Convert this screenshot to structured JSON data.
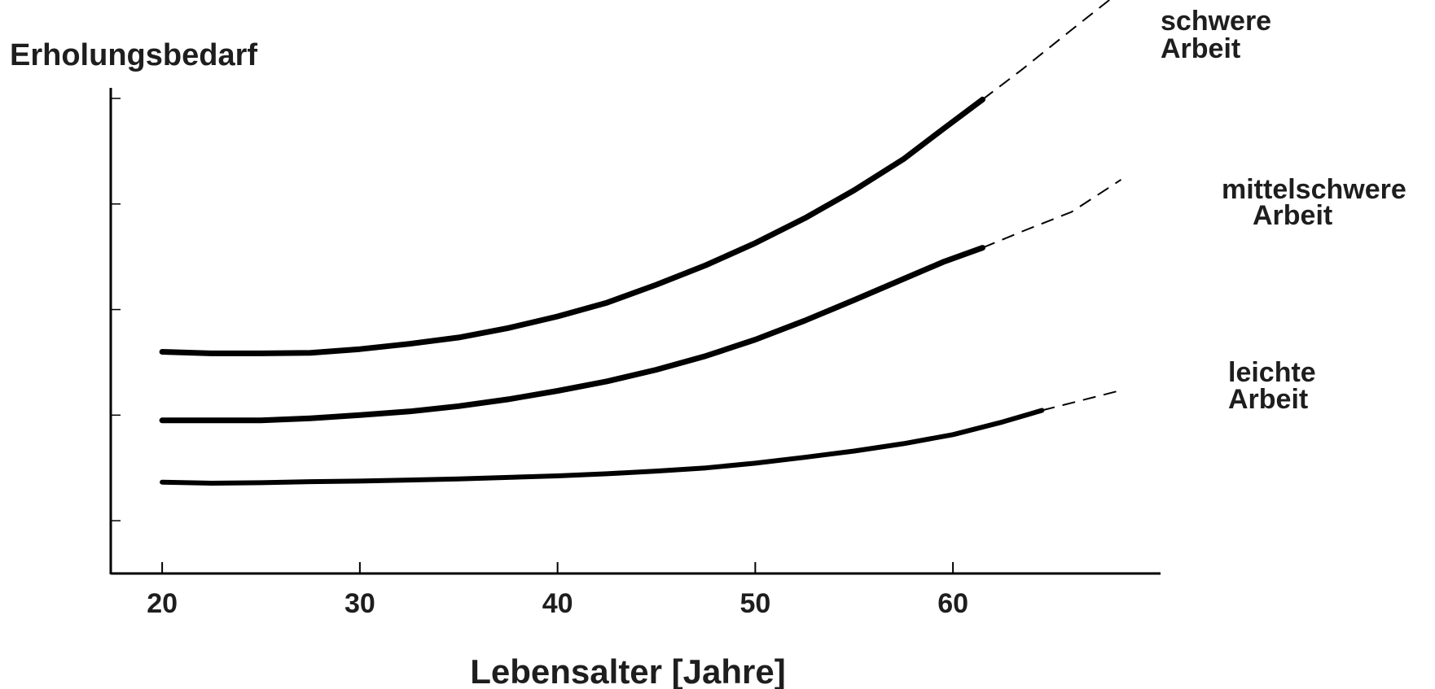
{
  "chart_data": {
    "type": "line",
    "title": "",
    "ylabel": "Erholungsbedarf",
    "xlabel": "Lebensalter [Jahre]",
    "x_ticks": [
      "20",
      "30",
      "40",
      "50",
      "60"
    ],
    "xlim": [
      17.4,
      70.5
    ],
    "ylim": [
      0,
      9.2
    ],
    "y_tick_values": [
      1,
      3,
      5,
      7,
      9
    ],
    "y_tick_labels_shown": false,
    "grid": false,
    "line_color": "#000000",
    "series": [
      {
        "name": [
          "schwere",
          "Arbeit"
        ],
        "solid": [
          [
            20,
            4.2
          ],
          [
            22.5,
            4.17
          ],
          [
            25,
            4.17
          ],
          [
            27.5,
            4.18
          ],
          [
            30,
            4.25
          ],
          [
            32.5,
            4.35
          ],
          [
            35,
            4.47
          ],
          [
            37.5,
            4.65
          ],
          [
            40,
            4.87
          ],
          [
            42.5,
            5.13
          ],
          [
            45,
            5.47
          ],
          [
            47.5,
            5.84
          ],
          [
            50,
            6.26
          ],
          [
            52.5,
            6.73
          ],
          [
            55,
            7.26
          ],
          [
            57.5,
            7.85
          ],
          [
            59.5,
            8.42
          ],
          [
            61.5,
            8.98
          ]
        ],
        "projected": [
          [
            61.5,
            8.98
          ],
          [
            63.5,
            9.55
          ],
          [
            66,
            10.3
          ],
          [
            68.2,
            10.95
          ]
        ]
      },
      {
        "name": [
          "mittelschwere",
          "Arbeit"
        ],
        "solid": [
          [
            20,
            2.9
          ],
          [
            22.5,
            2.9
          ],
          [
            25,
            2.9
          ],
          [
            27.5,
            2.94
          ],
          [
            30,
            3.0
          ],
          [
            32.5,
            3.07
          ],
          [
            35,
            3.17
          ],
          [
            37.5,
            3.3
          ],
          [
            40,
            3.46
          ],
          [
            42.5,
            3.64
          ],
          [
            45,
            3.86
          ],
          [
            47.5,
            4.12
          ],
          [
            50,
            4.43
          ],
          [
            52.5,
            4.79
          ],
          [
            55,
            5.18
          ],
          [
            57.5,
            5.58
          ],
          [
            59.5,
            5.9
          ],
          [
            61.5,
            6.17
          ]
        ],
        "projected": [
          [
            61.5,
            6.17
          ],
          [
            63.5,
            6.48
          ],
          [
            66,
            6.85
          ],
          [
            68.5,
            7.46
          ]
        ]
      },
      {
        "name": [
          "leichte",
          "Arbeit"
        ],
        "solid": [
          [
            20,
            1.73
          ],
          [
            22.5,
            1.71
          ],
          [
            25,
            1.72
          ],
          [
            27.5,
            1.74
          ],
          [
            30,
            1.75
          ],
          [
            32.5,
            1.77
          ],
          [
            35,
            1.79
          ],
          [
            37.5,
            1.82
          ],
          [
            40,
            1.85
          ],
          [
            42.5,
            1.89
          ],
          [
            45,
            1.94
          ],
          [
            47.5,
            2.0
          ],
          [
            50,
            2.09
          ],
          [
            52.5,
            2.2
          ],
          [
            55,
            2.32
          ],
          [
            57.5,
            2.46
          ],
          [
            60,
            2.63
          ],
          [
            62.5,
            2.87
          ],
          [
            64.5,
            3.09
          ]
        ],
        "projected": [
          [
            64.5,
            3.09
          ],
          [
            66.5,
            3.28
          ],
          [
            68.5,
            3.47
          ]
        ]
      }
    ]
  }
}
